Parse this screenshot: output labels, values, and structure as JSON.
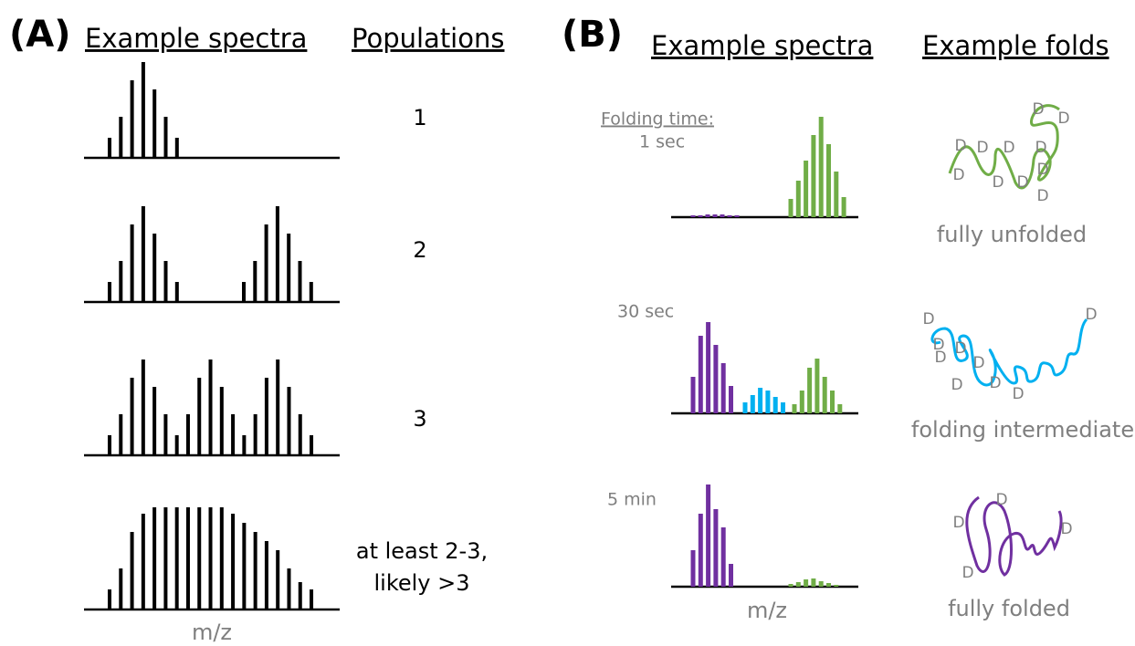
{
  "panel_a": {
    "label": "(A)",
    "spectra_heading": "Example spectra",
    "populations_heading": "Populations",
    "rows": [
      {
        "populations": "1"
      },
      {
        "populations": "2"
      },
      {
        "populations": "3"
      },
      {
        "populations": [
          "at least 2-3,",
          "likely >3"
        ]
      }
    ],
    "x_axis_label": "m/z"
  },
  "panel_b": {
    "label": "(B)",
    "spectra_heading": "Example spectra",
    "folds_heading": "Example folds",
    "folding_time_label": "Folding time:",
    "rows": [
      {
        "time": "1 sec",
        "fold": "fully unfolded",
        "fold_marks": [
          "D",
          "D",
          "D",
          "D",
          "D",
          "D",
          "D",
          "D",
          "D",
          "D",
          "D"
        ]
      },
      {
        "time": "30 sec",
        "fold": "folding intermediate",
        "fold_marks": [
          "D",
          "D",
          "D",
          "D",
          "D",
          "D",
          "D",
          "D",
          "D"
        ]
      },
      {
        "time": "5 min",
        "fold": "fully folded",
        "fold_marks": [
          "D",
          "D",
          "D",
          "D"
        ]
      }
    ],
    "x_axis_label": "m/z"
  }
}
